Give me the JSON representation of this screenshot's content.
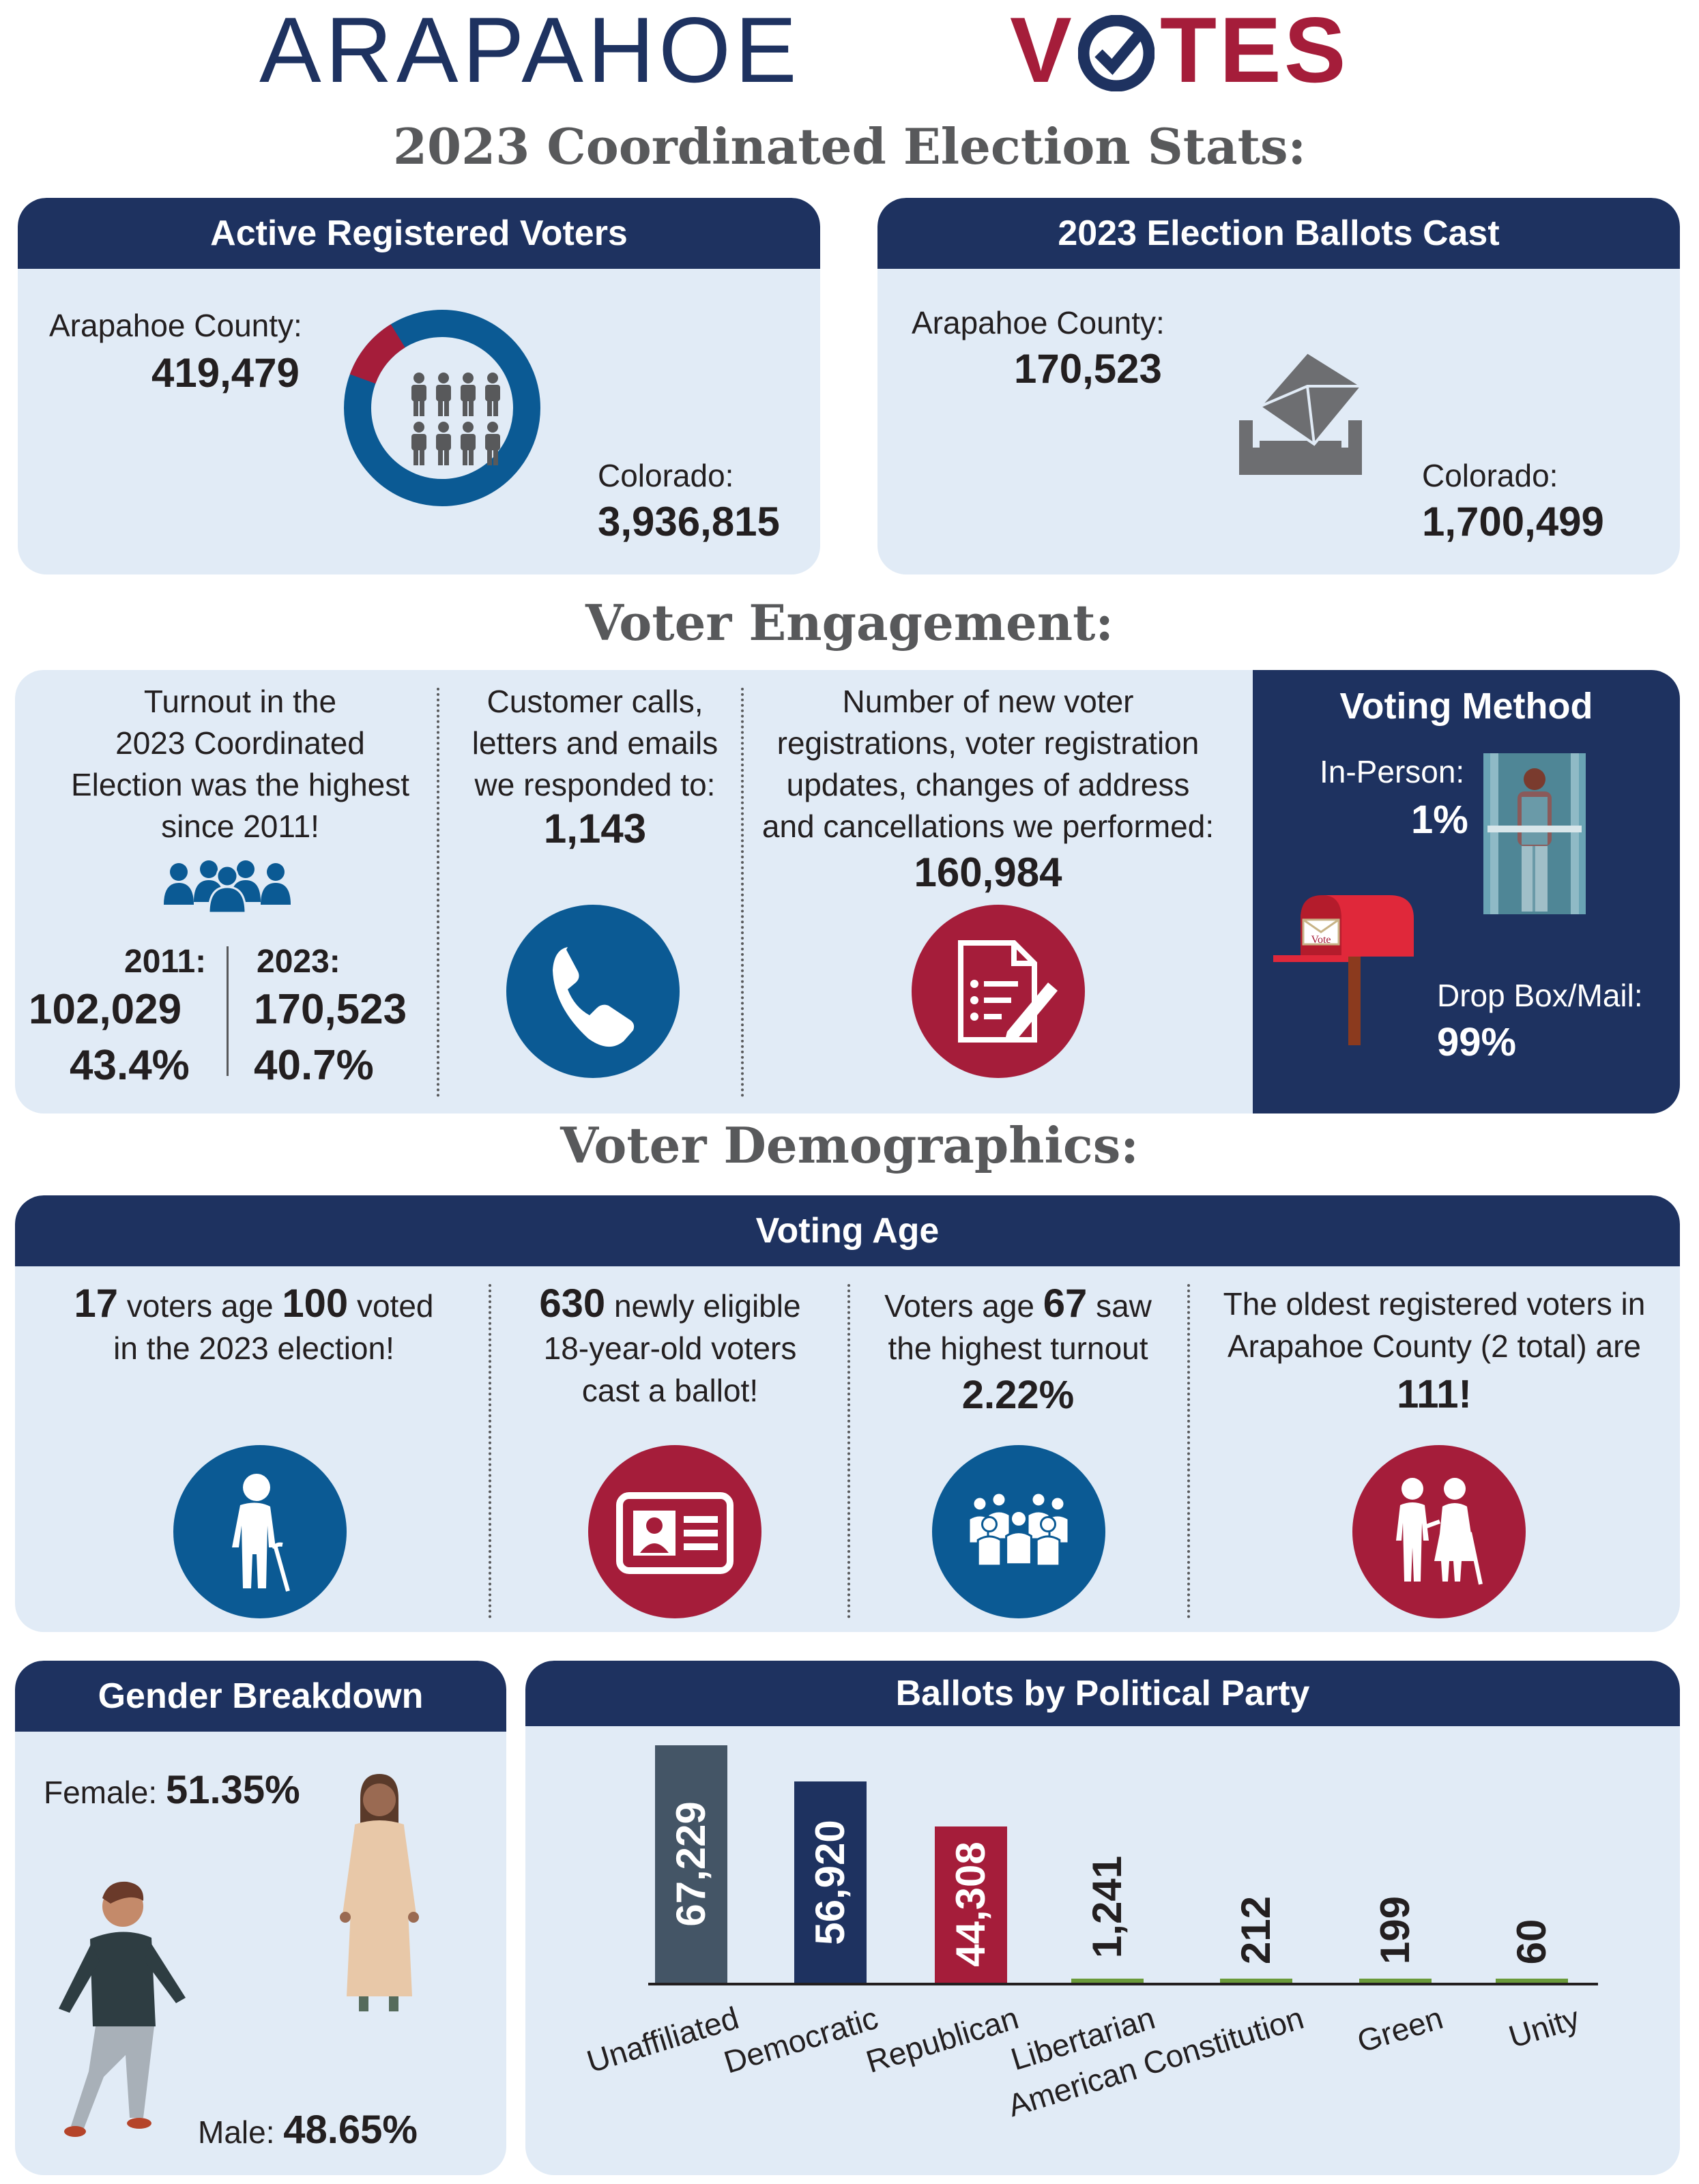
{
  "header": {
    "logo_left": "ARAPAHOE",
    "logo_v": "V",
    "logo_right": "TES",
    "subtitle": "2023 Coordinated Election Stats:"
  },
  "colors": {
    "navy": "#1e3260",
    "blue": "#0b5a94",
    "red": "#a51d3a",
    "panel": "#e1ebf6",
    "grey": "#58595b"
  },
  "registered": {
    "title": "Active Registered Voters",
    "county_label": "Arapahoe County:",
    "county_value": "419,479",
    "state_label": "Colorado:",
    "state_value": "3,936,815",
    "county_share": 0.1066,
    "icon": "people-icon"
  },
  "ballots": {
    "title": "2023 Election Ballots Cast",
    "county_label": "Arapahoe County:",
    "county_value": "170,523",
    "state_label": "Colorado:",
    "state_value": "1,700,499",
    "icon": "ballot-box-icon"
  },
  "engagement": {
    "heading": "Voter Engagement:",
    "turnout": {
      "line1": "Turnout in the",
      "line2": "2023 Coordinated",
      "line3": "Election was the highest",
      "line4": "since 2011!",
      "y2011_label": "2011:",
      "y2011_count": "102,029",
      "y2011_pct": "43.4%",
      "y2023_label": "2023:",
      "y2023_count": "170,523",
      "y2023_pct": "40.7%"
    },
    "calls": {
      "line1": "Customer calls,",
      "line2": "letters and emails",
      "line3": "we responded to:",
      "value": "1,143",
      "icon": "phone-icon"
    },
    "registrations": {
      "line1": "Number of new voter",
      "line2": "registrations, voter registration",
      "line3": "updates, changes of address",
      "line4": "and cancellations we performed:",
      "value": "160,984",
      "icon": "document-edit-icon"
    },
    "method": {
      "title": "Voting Method",
      "inperson_label": "In-Person:",
      "inperson_value": "1%",
      "mail_label": "Drop Box/Mail:",
      "mail_value": "99%",
      "mailbox_sign": "Vote"
    }
  },
  "demographics": {
    "heading": "Voter Demographics:",
    "age_title": "Voting Age",
    "age": [
      {
        "a": "17",
        "b": " voters age ",
        "c": "100",
        "d": " voted",
        "e": "in the 2023 election!"
      },
      {
        "a": "630",
        "b": " newly eligible",
        "c": "18-year-old voters",
        "d": "cast a ballot!"
      },
      {
        "a": "Voters age ",
        "b": "67",
        "c": " saw",
        "d": "the highest turnout",
        "e": "2.22%"
      },
      {
        "a": "The oldest registered voters in",
        "b": "Arapahoe County (2 total) are",
        "c": "111!"
      }
    ],
    "gender_title": "Gender Breakdown",
    "female_label": "Female: ",
    "female_value": "51.35%",
    "male_label": "Male: ",
    "male_value": "48.65%"
  },
  "chart_data": {
    "type": "bar",
    "title": "Ballots by Political Party",
    "categories": [
      "Unaffiliated",
      "Democratic",
      "Republican",
      "Libertarian",
      "American Constitution",
      "Green",
      "Unity"
    ],
    "values": [
      67229,
      56920,
      44308,
      1241,
      212,
      199,
      60
    ],
    "labels": [
      "67,229",
      "56,920",
      "44,308",
      "1,241",
      "212",
      "199",
      "60"
    ],
    "colors": [
      "#445566",
      "#1e3260",
      "#a51d3a",
      "#6a9a3a",
      "#6a9a3a",
      "#6a9a3a",
      "#6a9a3a"
    ],
    "ylim": [
      0,
      67229
    ]
  }
}
